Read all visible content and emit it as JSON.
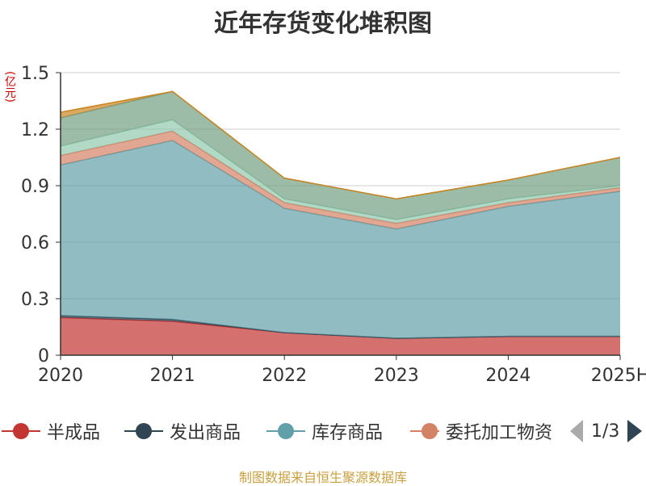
{
  "chart_data": {
    "type": "area",
    "title": "近年存货变化堆积图",
    "unit_label": "(亿元)",
    "categories": [
      "2020",
      "2021",
      "2022",
      "2023",
      "2024",
      "2025H"
    ],
    "ylim": [
      0,
      1.5
    ],
    "yticks": [
      "0",
      "0.3",
      "0.6",
      "0.9",
      "1.2",
      "1.5"
    ],
    "grid": true,
    "legend_position": "bottom",
    "series": [
      {
        "name": "半成品",
        "color": "#c23531",
        "values": [
          0.2,
          0.18,
          0.12,
          0.09,
          0.1,
          0.1
        ]
      },
      {
        "name": "发出商品",
        "color": "#2f4554",
        "values": [
          0.01,
          0.01,
          0.0,
          0.0,
          0.0,
          0.0
        ]
      },
      {
        "name": "库存商品",
        "color": "#61a0a8",
        "values": [
          0.8,
          0.95,
          0.66,
          0.58,
          0.69,
          0.77
        ]
      },
      {
        "name": "委托加工物资",
        "color": "#d48265",
        "values": [
          0.05,
          0.05,
          0.03,
          0.03,
          0.02,
          0.02
        ]
      },
      {
        "name": "",
        "color": "#91c7ae",
        "values": [
          0.05,
          0.06,
          0.02,
          0.02,
          0.02,
          0.01
        ]
      },
      {
        "name": "",
        "color": "#749f83",
        "values": [
          0.15,
          0.15,
          0.11,
          0.11,
          0.1,
          0.15
        ]
      },
      {
        "name": "",
        "color": "#ca8622",
        "values": [
          0.03,
          0.0,
          0.0,
          0.0,
          0.0,
          0.0
        ]
      }
    ]
  },
  "legend": {
    "items": [
      "半成品",
      "发出商品",
      "库存商品",
      "委托加工物资"
    ],
    "page_label": "1/3"
  },
  "source_text": "制图数据来自恒生聚源数据库"
}
